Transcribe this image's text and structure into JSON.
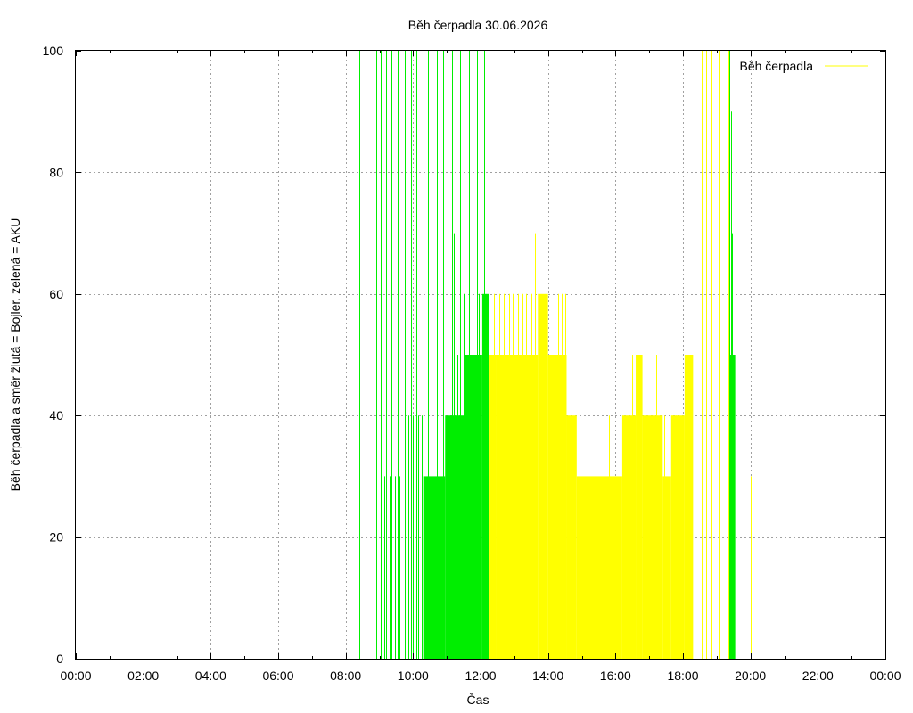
{
  "chart_data": {
    "type": "area",
    "title": "Běh čerpadla 30.06.2026",
    "xlabel": "Čas",
    "ylabel": "Běh čerpadla a směr žlutá = Bojler, zelená = AKU",
    "xlim": [
      0,
      24
    ],
    "ylim": [
      0,
      100
    ],
    "x_ticks": [
      {
        "value": 0,
        "label": "00:00"
      },
      {
        "value": 2,
        "label": "02:00"
      },
      {
        "value": 4,
        "label": "04:00"
      },
      {
        "value": 6,
        "label": "06:00"
      },
      {
        "value": 8,
        "label": "08:00"
      },
      {
        "value": 10,
        "label": "10:00"
      },
      {
        "value": 12,
        "label": "12:00"
      },
      {
        "value": 14,
        "label": "14:00"
      },
      {
        "value": 16,
        "label": "16:00"
      },
      {
        "value": 18,
        "label": "18:00"
      },
      {
        "value": 20,
        "label": "20:00"
      },
      {
        "value": 22,
        "label": "22:00"
      },
      {
        "value": 24,
        "label": "00:00"
      }
    ],
    "y_ticks": [
      {
        "value": 0,
        "label": "0"
      },
      {
        "value": 20,
        "label": "20"
      },
      {
        "value": 40,
        "label": "40"
      },
      {
        "value": 60,
        "label": "60"
      },
      {
        "value": 80,
        "label": "80"
      },
      {
        "value": 100,
        "label": "100"
      }
    ],
    "grid": true,
    "legend": {
      "position": "top-right",
      "entries": [
        {
          "label": "Běh čerpadla",
          "color": "#ffff00"
        }
      ]
    },
    "series": [
      {
        "name": "Běh čerpadla",
        "color": "#ffff00",
        "fills": [
          {
            "x0": 12.25,
            "x1": 12.45,
            "value": 50
          },
          {
            "x0": 12.45,
            "x1": 13.7,
            "value": 50
          },
          {
            "x0": 13.7,
            "x1": 14.0,
            "value": 60
          },
          {
            "x0": 14.0,
            "x1": 14.55,
            "value": 50
          },
          {
            "x0": 14.55,
            "x1": 14.85,
            "value": 40
          },
          {
            "x0": 14.85,
            "x1": 16.2,
            "value": 30
          },
          {
            "x0": 16.2,
            "x1": 16.6,
            "value": 40
          },
          {
            "x0": 16.6,
            "x1": 16.8,
            "value": 50
          },
          {
            "x0": 16.8,
            "x1": 17.4,
            "value": 40
          },
          {
            "x0": 17.4,
            "x1": 17.65,
            "value": 30
          },
          {
            "x0": 17.65,
            "x1": 18.05,
            "value": 40
          },
          {
            "x0": 18.05,
            "x1": 18.3,
            "value": 50
          }
        ],
        "spikes": [
          {
            "x": 12.4,
            "value": 60
          },
          {
            "x": 12.55,
            "value": 60
          },
          {
            "x": 12.7,
            "value": 60
          },
          {
            "x": 12.85,
            "value": 60
          },
          {
            "x": 12.95,
            "value": 60
          },
          {
            "x": 13.1,
            "value": 60
          },
          {
            "x": 13.25,
            "value": 60
          },
          {
            "x": 13.35,
            "value": 60
          },
          {
            "x": 13.5,
            "value": 60
          },
          {
            "x": 13.6,
            "value": 60
          },
          {
            "x": 13.6,
            "value": 70
          },
          {
            "x": 14.2,
            "value": 60
          },
          {
            "x": 14.3,
            "value": 60
          },
          {
            "x": 14.4,
            "value": 60
          },
          {
            "x": 14.5,
            "value": 60
          },
          {
            "x": 15.8,
            "value": 40
          },
          {
            "x": 16.5,
            "value": 50
          },
          {
            "x": 16.9,
            "value": 50
          },
          {
            "x": 17.2,
            "value": 50
          },
          {
            "x": 17.45,
            "value": 40
          },
          {
            "x": 17.8,
            "value": 40
          },
          {
            "x": 18.55,
            "value": 100
          },
          {
            "x": 18.7,
            "value": 100
          },
          {
            "x": 18.85,
            "value": 100
          },
          {
            "x": 19.05,
            "value": 100
          },
          {
            "x": 19.35,
            "value": 100
          },
          {
            "x": 20.02,
            "value": 30
          }
        ]
      },
      {
        "name": "",
        "color": "#00ee00",
        "fills": [
          {
            "x0": 10.3,
            "x1": 10.95,
            "value": 30
          },
          {
            "x0": 10.95,
            "x1": 11.55,
            "value": 40
          },
          {
            "x0": 11.55,
            "x1": 12.05,
            "value": 50
          },
          {
            "x0": 12.05,
            "x1": 12.25,
            "value": 60
          },
          {
            "x0": 19.4,
            "x1": 19.55,
            "value": 50
          }
        ],
        "spikes": [
          {
            "x": 8.4,
            "value": 100
          },
          {
            "x": 8.9,
            "value": 100
          },
          {
            "x": 9.05,
            "value": 100
          },
          {
            "x": 9.2,
            "value": 100
          },
          {
            "x": 9.35,
            "value": 100
          },
          {
            "x": 9.55,
            "value": 100
          },
          {
            "x": 9.75,
            "value": 100
          },
          {
            "x": 9.95,
            "value": 100
          },
          {
            "x": 10.1,
            "value": 100
          },
          {
            "x": 10.45,
            "value": 100
          },
          {
            "x": 10.7,
            "value": 100
          },
          {
            "x": 10.9,
            "value": 100
          },
          {
            "x": 11.15,
            "value": 100
          },
          {
            "x": 11.4,
            "value": 100
          },
          {
            "x": 11.65,
            "value": 100
          },
          {
            "x": 11.9,
            "value": 100
          },
          {
            "x": 12.1,
            "value": 100
          },
          {
            "x": 9.15,
            "value": 30
          },
          {
            "x": 9.3,
            "value": 30
          },
          {
            "x": 9.45,
            "value": 30
          },
          {
            "x": 9.6,
            "value": 30
          },
          {
            "x": 9.85,
            "value": 40
          },
          {
            "x": 10.0,
            "value": 40
          },
          {
            "x": 10.15,
            "value": 40
          },
          {
            "x": 10.25,
            "value": 40
          },
          {
            "x": 11.2,
            "value": 70
          },
          {
            "x": 11.3,
            "value": 50
          },
          {
            "x": 11.5,
            "value": 60
          },
          {
            "x": 11.75,
            "value": 60
          },
          {
            "x": 11.95,
            "value": 60
          },
          {
            "x": 19.38,
            "value": 100
          },
          {
            "x": 19.42,
            "value": 90
          },
          {
            "x": 19.46,
            "value": 70
          }
        ]
      }
    ]
  }
}
